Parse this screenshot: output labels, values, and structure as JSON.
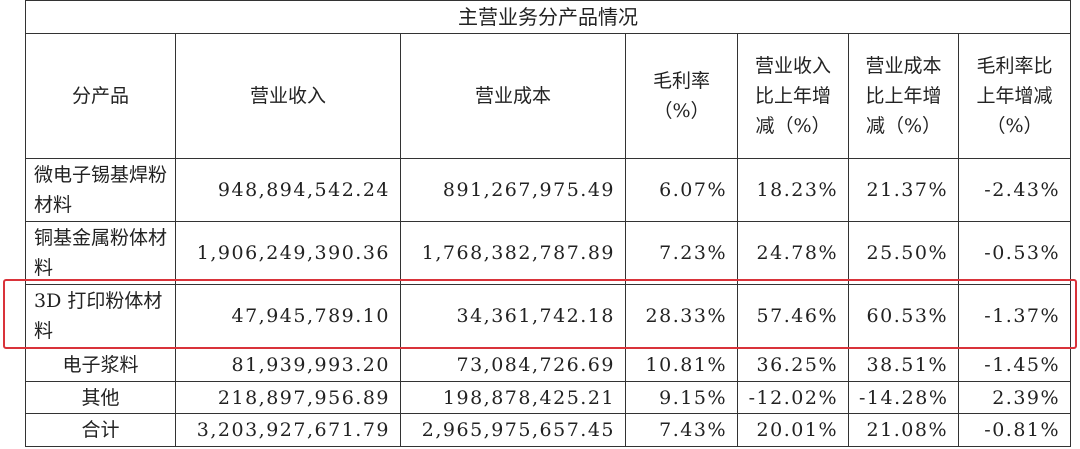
{
  "table": {
    "title": "主营业务分产品情况",
    "header": [
      "分产品",
      "营业收入",
      "营业成本",
      "毛利率（%）",
      "营业收入比上年增减（%）",
      "营业成本比上年增减（%）",
      "毛利率比上年增减（%）"
    ],
    "rows": [
      [
        "微电子锡基焊粉材料",
        "948,894,542.24",
        "891,267,975.49",
        "6.07%",
        "18.23%",
        "21.37%",
        "-2.43%"
      ],
      [
        "铜基金属粉体材料",
        "1,906,249,390.36",
        "1,768,382,787.89",
        "7.23%",
        "24.78%",
        "25.50%",
        "-0.53%"
      ],
      [
        "3D 打印粉体材料",
        "47,945,789.10",
        "34,361,742.18",
        "28.33%",
        "57.46%",
        "60.53%",
        "-1.37%"
      ],
      [
        "电子浆料",
        "81,939,993.20",
        "73,084,726.69",
        "10.81%",
        "36.25%",
        "38.51%",
        "-1.45%"
      ],
      [
        "其他",
        "218,897,956.89",
        "198,878,425.21",
        "9.15%",
        "-12.02%",
        "-14.28%",
        "2.39%"
      ],
      [
        "合计",
        "3,203,927,671.79",
        "2,965,975,657.45",
        "7.43%",
        "20.01%",
        "21.08%",
        "-0.81%"
      ]
    ]
  }
}
